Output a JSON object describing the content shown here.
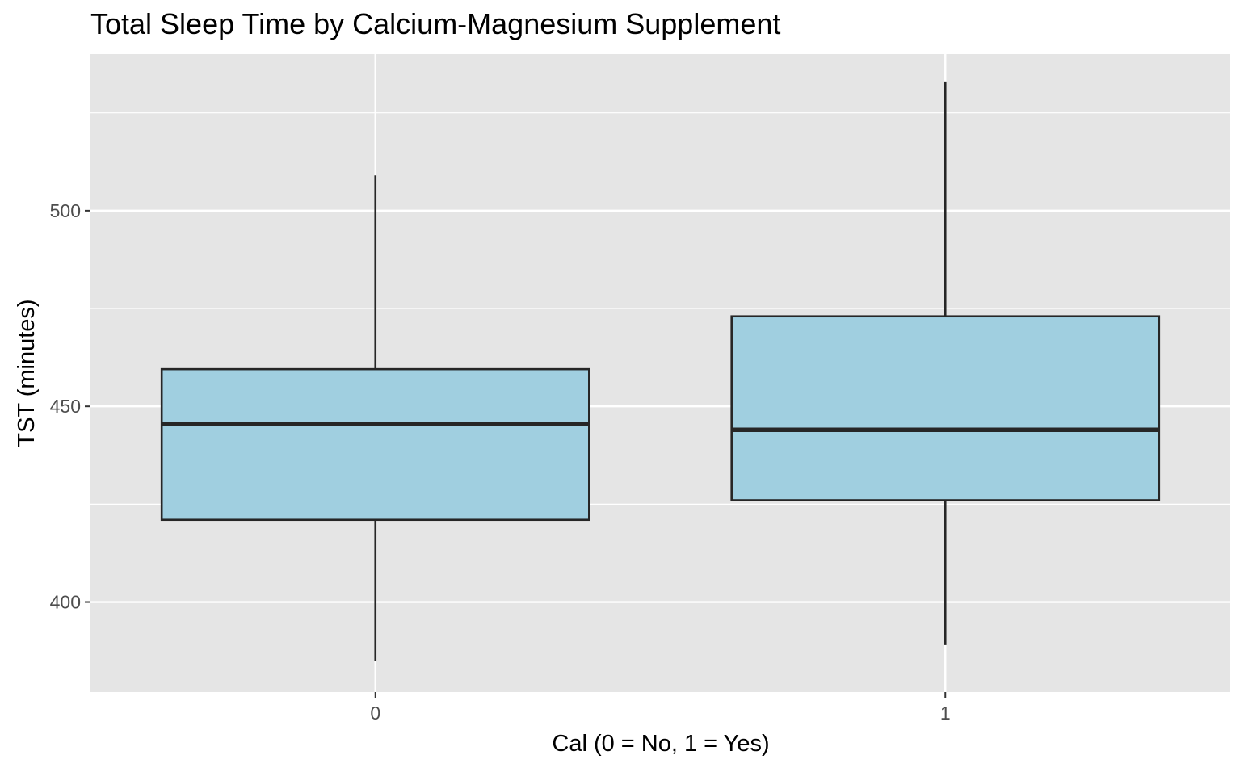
{
  "chart_data": {
    "type": "boxplot",
    "title": "Total Sleep Time by Calcium-Magnesium Supplement",
    "xlabel": "Cal (0 = No, 1 = Yes)",
    "ylabel": "TST (minutes)",
    "categories": [
      "0",
      "1"
    ],
    "ylim": [
      377,
      540
    ],
    "yticks": [
      400,
      450,
      500
    ],
    "ytick_labels": [
      "400",
      "450",
      "500"
    ],
    "minor_yticks": [
      425,
      475,
      525
    ],
    "grid": true,
    "boxes": [
      {
        "category": "0",
        "min": 385,
        "q1": 421,
        "median": 445.5,
        "q3": 459.5,
        "max": 509
      },
      {
        "category": "1",
        "min": 389,
        "q1": 426,
        "median": 444,
        "q3": 473,
        "max": 533
      }
    ],
    "colors": {
      "panel": "#e5e5e5",
      "grid": "#ffffff",
      "box_fill": "#a0cfe0",
      "box_stroke": "#262626",
      "tick_text": "#4d4d4d",
      "axis_text": "#000000"
    }
  }
}
